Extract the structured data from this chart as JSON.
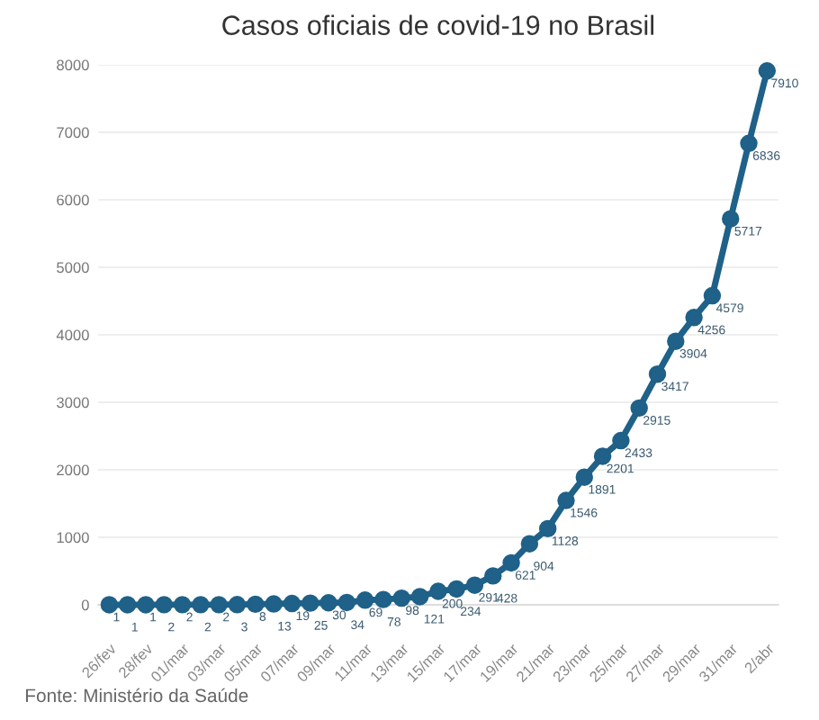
{
  "chart_data": {
    "type": "line",
    "title": "Casos oficiais de covid-19 no Brasil",
    "categories": [
      "26/fev",
      null,
      "28/fev",
      null,
      "01/mar",
      null,
      "03/mar",
      null,
      "05/mar",
      null,
      "07/mar",
      null,
      "09/mar",
      null,
      "11/mar",
      null,
      "13/mar",
      null,
      "15/mar",
      null,
      "17/mar",
      null,
      "19/mar",
      null,
      "21/mar",
      null,
      "23/mar",
      null,
      "25/mar",
      null,
      "27/mar",
      null,
      "29/mar",
      null,
      "31/mar",
      null,
      "2/abr"
    ],
    "series": [
      {
        "color": "#1f6188",
        "values": [
          1,
          1,
          1,
          2,
          2,
          2,
          2,
          3,
          8,
          13,
          19,
          25,
          30,
          34,
          69,
          78,
          98,
          121,
          200,
          234,
          291,
          428,
          621,
          904,
          1128,
          1546,
          1891,
          2201,
          2433,
          2915,
          3417,
          3904,
          4256,
          4579,
          5717,
          6836,
          7910
        ]
      }
    ],
    "ylim": [
      0,
      8000
    ],
    "yticks": [
      0,
      1000,
      2000,
      3000,
      4000,
      5000,
      6000,
      7000,
      8000
    ],
    "grid": "y",
    "marker": "circle",
    "line_style": "solid",
    "data_labels": true,
    "annotations": [
      "Fonte: Ministério da Saúde"
    ]
  }
}
